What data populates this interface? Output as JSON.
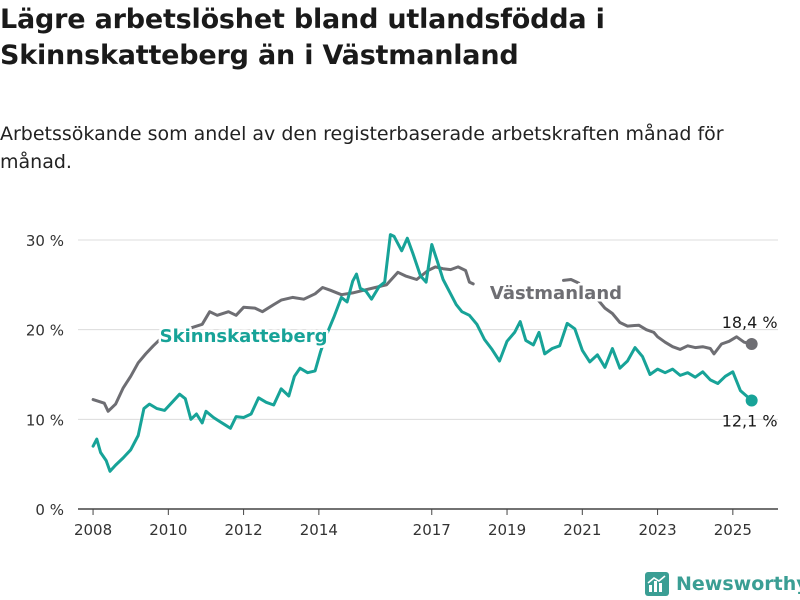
{
  "title": "Lägre arbetslöshet bland utlandsfödda i Skinnskatteberg än i Västmanland",
  "subtitle": "Arbetssökande som andel av den registerbaserade arbetskraften månad för månad.",
  "brand": {
    "name": "Newsworthy",
    "color": "#3a9e94"
  },
  "chart_data": {
    "type": "line",
    "title": "Lägre arbetslöshet bland utlandsfödda i Skinnskatteberg än i Västmanland",
    "subtitle": "Arbetssökande som andel av den registerbaserade arbetskraften månad för månad.",
    "y_unit": "%",
    "ylim": [
      0,
      30
    ],
    "y_ticks": [
      0,
      10,
      20,
      30
    ],
    "y_tick_labels": [
      "0 %",
      "10 %",
      "20 %",
      "30 %"
    ],
    "x_ticks": [
      2008,
      2010,
      2012,
      2014,
      2017,
      2019,
      2021,
      2023,
      2025
    ],
    "xlim": [
      2007.6,
      2026.2
    ],
    "grid": true,
    "series": [
      {
        "name": "Västmanland",
        "color": "#6e6e73",
        "end_label": "18,4 %",
        "points": [
          [
            2008.0,
            12.2
          ],
          [
            2008.3,
            11.8
          ],
          [
            2008.4,
            10.9
          ],
          [
            2008.6,
            11.7
          ],
          [
            2008.8,
            13.5
          ],
          [
            2009.0,
            14.8
          ],
          [
            2009.2,
            16.3
          ],
          [
            2009.4,
            17.3
          ],
          [
            2009.6,
            18.2
          ],
          [
            2009.8,
            19.0
          ],
          [
            2010.0,
            19.6
          ],
          [
            2010.2,
            20.0
          ],
          [
            2010.4,
            19.7
          ],
          [
            2010.6,
            20.2
          ],
          [
            2010.9,
            20.6
          ],
          [
            2011.1,
            22.0
          ],
          [
            2011.3,
            21.6
          ],
          [
            2011.6,
            22.0
          ],
          [
            2011.8,
            21.6
          ],
          [
            2012.0,
            22.5
          ],
          [
            2012.3,
            22.4
          ],
          [
            2012.5,
            22.0
          ],
          [
            2012.8,
            22.8
          ],
          [
            2013.0,
            23.3
          ],
          [
            2013.3,
            23.6
          ],
          [
            2013.6,
            23.4
          ],
          [
            2013.9,
            24.0
          ],
          [
            2014.1,
            24.7
          ],
          [
            2014.3,
            24.4
          ],
          [
            2014.6,
            23.9
          ],
          [
            2014.9,
            24.1
          ],
          [
            2015.2,
            24.4
          ],
          [
            2015.5,
            24.7
          ],
          [
            2015.8,
            25.0
          ],
          [
            2016.1,
            26.4
          ],
          [
            2016.3,
            26.0
          ],
          [
            2016.6,
            25.6
          ],
          [
            2016.9,
            26.6
          ],
          [
            2017.1,
            27.0
          ],
          [
            2017.3,
            26.8
          ],
          [
            2017.5,
            26.7
          ],
          [
            2017.7,
            27.0
          ],
          [
            2017.9,
            26.6
          ],
          [
            2018.0,
            25.3
          ],
          [
            2018.1,
            25.1
          ]
        ],
        "points_b": [
          [
            2020.5,
            25.5
          ],
          [
            2020.7,
            25.6
          ],
          [
            2020.9,
            25.2
          ],
          [
            2021.0,
            24.7
          ],
          [
            2021.3,
            23.9
          ],
          [
            2021.6,
            22.4
          ],
          [
            2021.8,
            21.8
          ],
          [
            2022.0,
            20.8
          ],
          [
            2022.2,
            20.4
          ],
          [
            2022.5,
            20.5
          ],
          [
            2022.7,
            20.0
          ],
          [
            2022.9,
            19.7
          ],
          [
            2023.0,
            19.2
          ],
          [
            2023.2,
            18.6
          ],
          [
            2023.4,
            18.1
          ],
          [
            2023.6,
            17.8
          ],
          [
            2023.8,
            18.2
          ],
          [
            2024.0,
            18.0
          ],
          [
            2024.2,
            18.1
          ],
          [
            2024.4,
            17.9
          ],
          [
            2024.5,
            17.3
          ],
          [
            2024.7,
            18.4
          ],
          [
            2024.9,
            18.7
          ],
          [
            2025.1,
            19.2
          ],
          [
            2025.3,
            18.6
          ],
          [
            2025.5,
            18.4
          ]
        ]
      },
      {
        "name": "Skinnskatteberg",
        "color": "#17a398",
        "end_label": "12,1 %",
        "points": [
          [
            2008.0,
            7.0
          ],
          [
            2008.1,
            7.8
          ],
          [
            2008.2,
            6.3
          ],
          [
            2008.35,
            5.4
          ],
          [
            2008.45,
            4.2
          ],
          [
            2008.6,
            4.9
          ],
          [
            2008.8,
            5.7
          ],
          [
            2009.0,
            6.6
          ],
          [
            2009.2,
            8.2
          ],
          [
            2009.35,
            11.2
          ],
          [
            2009.5,
            11.7
          ],
          [
            2009.7,
            11.2
          ],
          [
            2009.9,
            11.0
          ],
          [
            2010.1,
            11.9
          ],
          [
            2010.3,
            12.8
          ],
          [
            2010.45,
            12.3
          ],
          [
            2010.6,
            10.0
          ],
          [
            2010.75,
            10.6
          ],
          [
            2010.9,
            9.6
          ],
          [
            2011.0,
            10.9
          ],
          [
            2011.2,
            10.2
          ],
          [
            2011.35,
            9.8
          ],
          [
            2011.5,
            9.4
          ],
          [
            2011.65,
            9.0
          ],
          [
            2011.8,
            10.3
          ],
          [
            2012.0,
            10.2
          ],
          [
            2012.2,
            10.6
          ],
          [
            2012.4,
            12.4
          ],
          [
            2012.6,
            11.9
          ],
          [
            2012.8,
            11.6
          ],
          [
            2013.0,
            13.4
          ],
          [
            2013.2,
            12.6
          ],
          [
            2013.35,
            14.8
          ],
          [
            2013.5,
            15.7
          ],
          [
            2013.7,
            15.2
          ],
          [
            2013.9,
            15.4
          ],
          [
            2014.05,
            17.6
          ],
          [
            2014.2,
            19.4
          ],
          [
            2014.4,
            21.4
          ],
          [
            2014.6,
            23.6
          ],
          [
            2014.75,
            23.1
          ],
          [
            2014.9,
            25.4
          ],
          [
            2015.0,
            26.2
          ],
          [
            2015.1,
            24.6
          ],
          [
            2015.25,
            24.3
          ],
          [
            2015.4,
            23.4
          ],
          [
            2015.6,
            24.8
          ],
          [
            2015.75,
            25.3
          ],
          [
            2015.9,
            30.6
          ],
          [
            2016.0,
            30.4
          ],
          [
            2016.2,
            28.8
          ],
          [
            2016.35,
            30.2
          ],
          [
            2016.5,
            28.5
          ],
          [
            2016.7,
            26.0
          ],
          [
            2016.85,
            25.3
          ],
          [
            2017.0,
            29.5
          ],
          [
            2017.15,
            27.6
          ],
          [
            2017.3,
            25.6
          ],
          [
            2017.5,
            24.0
          ],
          [
            2017.65,
            22.8
          ],
          [
            2017.8,
            22.0
          ],
          [
            2018.0,
            21.6
          ],
          [
            2018.2,
            20.6
          ],
          [
            2018.4,
            18.9
          ],
          [
            2018.6,
            17.8
          ],
          [
            2018.8,
            16.5
          ],
          [
            2019.0,
            18.7
          ],
          [
            2019.2,
            19.7
          ],
          [
            2019.35,
            20.9
          ],
          [
            2019.5,
            18.8
          ],
          [
            2019.7,
            18.3
          ],
          [
            2019.85,
            19.7
          ],
          [
            2020.0,
            17.3
          ],
          [
            2020.2,
            17.9
          ],
          [
            2020.4,
            18.2
          ],
          [
            2020.6,
            20.7
          ],
          [
            2020.8,
            20.1
          ],
          [
            2021.0,
            17.7
          ],
          [
            2021.2,
            16.4
          ],
          [
            2021.4,
            17.2
          ],
          [
            2021.6,
            15.8
          ],
          [
            2021.8,
            17.9
          ],
          [
            2022.0,
            15.7
          ],
          [
            2022.2,
            16.5
          ],
          [
            2022.4,
            18.0
          ],
          [
            2022.6,
            17.0
          ],
          [
            2022.8,
            15.0
          ],
          [
            2023.0,
            15.6
          ],
          [
            2023.2,
            15.2
          ],
          [
            2023.4,
            15.6
          ],
          [
            2023.6,
            14.9
          ],
          [
            2023.8,
            15.2
          ],
          [
            2024.0,
            14.7
          ],
          [
            2024.2,
            15.3
          ],
          [
            2024.4,
            14.4
          ],
          [
            2024.6,
            14.0
          ],
          [
            2024.8,
            14.8
          ],
          [
            2025.0,
            15.3
          ],
          [
            2025.2,
            13.2
          ],
          [
            2025.5,
            12.1
          ]
        ]
      }
    ],
    "labels": [
      {
        "series": "Västmanland",
        "text": "Västmanland",
        "at": [
          2020.3,
          23.4
        ]
      },
      {
        "series": "Skinnskatteberg",
        "text": "Skinnskatteberg",
        "at": [
          2012.0,
          18.6
        ]
      }
    ]
  }
}
